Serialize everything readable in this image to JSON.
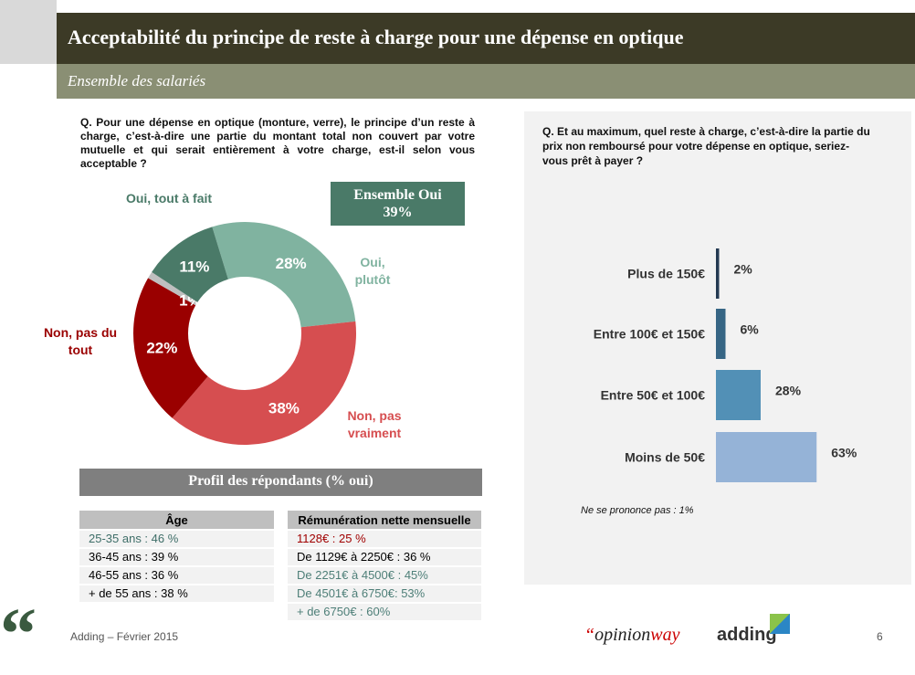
{
  "header": {
    "title": "Acceptabilité du principe de reste à charge pour une dépense en optique",
    "subtitle": "Ensemble des salariés"
  },
  "left": {
    "question": "Q. Pour une dépense en optique (monture, verre), le principe d’un reste à charge, c’est-à-dire une partie du montant total non couvert par votre mutuelle et qui serait entièrement à votre charge, est-il selon vous acceptable ?",
    "ensemble_label": "Ensemble Oui",
    "ensemble_value": "39%"
  },
  "right": {
    "question": "Q. Et au maximum, quel reste à charge, c’est-à-dire la partie du prix non remboursé pour votre dépense en optique, seriez-vous prêt à payer ?",
    "note": "Ne se prononce pas : 1%"
  },
  "chart_data": [
    {
      "type": "pie",
      "variant": "donut",
      "slices": [
        {
          "name": "Oui, plutôt",
          "value": 28,
          "label": "28%",
          "color": "#80b3a0"
        },
        {
          "name": "Non, pas vraiment",
          "value": 38,
          "label": "38%",
          "color": "#d64e50"
        },
        {
          "name": "Non, pas du tout",
          "value": 22,
          "label": "22%",
          "color": "#9a0000"
        },
        {
          "name": "",
          "value": 1,
          "label": "1%",
          "color": "#bfbfbf"
        },
        {
          "name": "Oui, tout à fait",
          "value": 11,
          "label": "11%",
          "color": "#4a7a68"
        }
      ]
    },
    {
      "type": "bar",
      "orientation": "horizontal",
      "categories": [
        "Plus de 150€",
        "Entre 100€ et 150€",
        "Entre 50€ et 100€",
        "Moins de 50€"
      ],
      "values": [
        2,
        6,
        28,
        63
      ],
      "labels": [
        "2%",
        "6%",
        "28%",
        "63%"
      ],
      "colors": [
        "#243a52",
        "#376685",
        "#5290b6",
        "#95b3d7"
      ]
    }
  ],
  "profil": {
    "title": "Profil des répondants (% oui)",
    "age": {
      "header": "Âge",
      "rows": [
        {
          "text": "25-35 ans : 46 %",
          "color": "#3e6e68"
        },
        {
          "text": "36-45 ans : 39 %",
          "color": "#000"
        },
        {
          "text": "46-55 ans : 36 %",
          "color": "#000"
        },
        {
          "text": "+ de 55 ans : 38 %",
          "color": "#000"
        }
      ]
    },
    "remu": {
      "header": "Rémunération nette mensuelle",
      "rows": [
        {
          "text": "1128€ : 25 %",
          "color": "#a00000"
        },
        {
          "text": "De 1129€ à 2250€ : 36 %",
          "color": "#000"
        },
        {
          "text": "De 2251€ à 4500€ : 45%",
          "color": "#4e7f78"
        },
        {
          "text": "De 4501€ à 6750€: 53%",
          "color": "#4e7f78"
        },
        {
          "text": "+ de 6750€ : 60%",
          "color": "#4e7f78"
        }
      ]
    }
  },
  "footer": {
    "text": "Adding – Février 2015",
    "page": "6",
    "logo1_q": "“",
    "logo1_a": "opinion",
    "logo1_b": "way",
    "logo2": "adding"
  }
}
